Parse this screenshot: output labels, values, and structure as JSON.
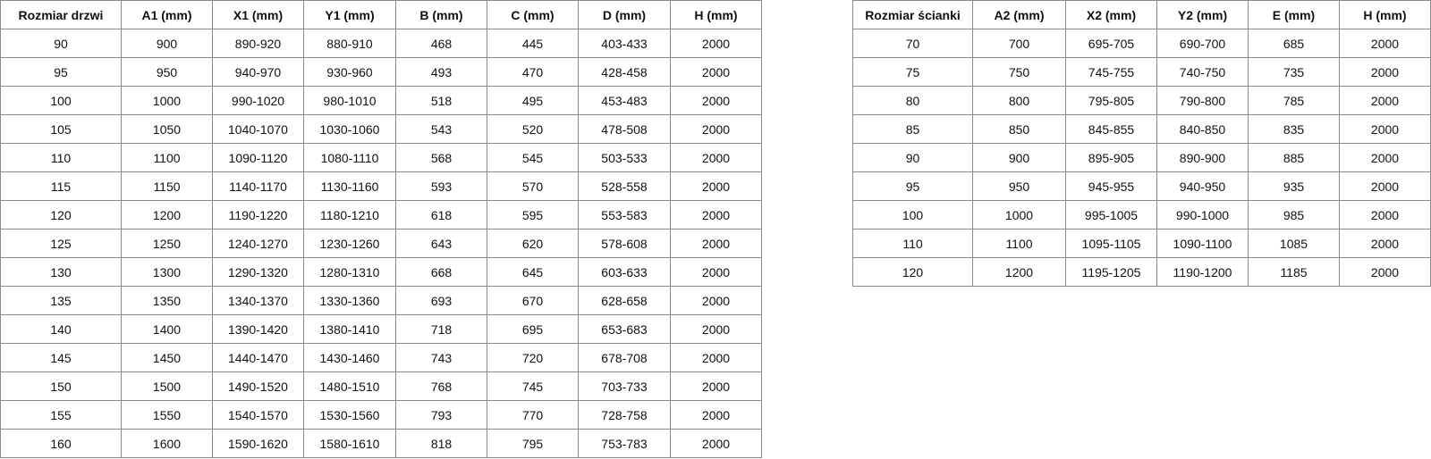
{
  "doors_table": {
    "headers": [
      "Rozmiar drzwi",
      "A1 (mm)",
      "X1 (mm)",
      "Y1 (mm)",
      "B (mm)",
      "C (mm)",
      "D (mm)",
      "H (mm)"
    ],
    "rows": [
      [
        "90",
        "900",
        "890-920",
        "880-910",
        "468",
        "445",
        "403-433",
        "2000"
      ],
      [
        "95",
        "950",
        "940-970",
        "930-960",
        "493",
        "470",
        "428-458",
        "2000"
      ],
      [
        "100",
        "1000",
        "990-1020",
        "980-1010",
        "518",
        "495",
        "453-483",
        "2000"
      ],
      [
        "105",
        "1050",
        "1040-1070",
        "1030-1060",
        "543",
        "520",
        "478-508",
        "2000"
      ],
      [
        "110",
        "1100",
        "1090-1120",
        "1080-1110",
        "568",
        "545",
        "503-533",
        "2000"
      ],
      [
        "115",
        "1150",
        "1140-1170",
        "1130-1160",
        "593",
        "570",
        "528-558",
        "2000"
      ],
      [
        "120",
        "1200",
        "1190-1220",
        "1180-1210",
        "618",
        "595",
        "553-583",
        "2000"
      ],
      [
        "125",
        "1250",
        "1240-1270",
        "1230-1260",
        "643",
        "620",
        "578-608",
        "2000"
      ],
      [
        "130",
        "1300",
        "1290-1320",
        "1280-1310",
        "668",
        "645",
        "603-633",
        "2000"
      ],
      [
        "135",
        "1350",
        "1340-1370",
        "1330-1360",
        "693",
        "670",
        "628-658",
        "2000"
      ],
      [
        "140",
        "1400",
        "1390-1420",
        "1380-1410",
        "718",
        "695",
        "653-683",
        "2000"
      ],
      [
        "145",
        "1450",
        "1440-1470",
        "1430-1460",
        "743",
        "720",
        "678-708",
        "2000"
      ],
      [
        "150",
        "1500",
        "1490-1520",
        "1480-1510",
        "768",
        "745",
        "703-733",
        "2000"
      ],
      [
        "155",
        "1550",
        "1540-1570",
        "1530-1560",
        "793",
        "770",
        "728-758",
        "2000"
      ],
      [
        "160",
        "1600",
        "1590-1620",
        "1580-1610",
        "818",
        "795",
        "753-783",
        "2000"
      ]
    ]
  },
  "walls_table": {
    "headers": [
      "Rozmiar ścianki",
      "A2 (mm)",
      "X2 (mm)",
      "Y2 (mm)",
      "E (mm)",
      "H (mm)"
    ],
    "rows": [
      [
        "70",
        "700",
        "695-705",
        "690-700",
        "685",
        "2000"
      ],
      [
        "75",
        "750",
        "745-755",
        "740-750",
        "735",
        "2000"
      ],
      [
        "80",
        "800",
        "795-805",
        "790-800",
        "785",
        "2000"
      ],
      [
        "85",
        "850",
        "845-855",
        "840-850",
        "835",
        "2000"
      ],
      [
        "90",
        "900",
        "895-905",
        "890-900",
        "885",
        "2000"
      ],
      [
        "95",
        "950",
        "945-955",
        "940-950",
        "935",
        "2000"
      ],
      [
        "100",
        "1000",
        "995-1005",
        "990-1000",
        "985",
        "2000"
      ],
      [
        "110",
        "1100",
        "1095-1105",
        "1090-1100",
        "1085",
        "2000"
      ],
      [
        "120",
        "1200",
        "1195-1205",
        "1190-1200",
        "1185",
        "2000"
      ]
    ]
  }
}
